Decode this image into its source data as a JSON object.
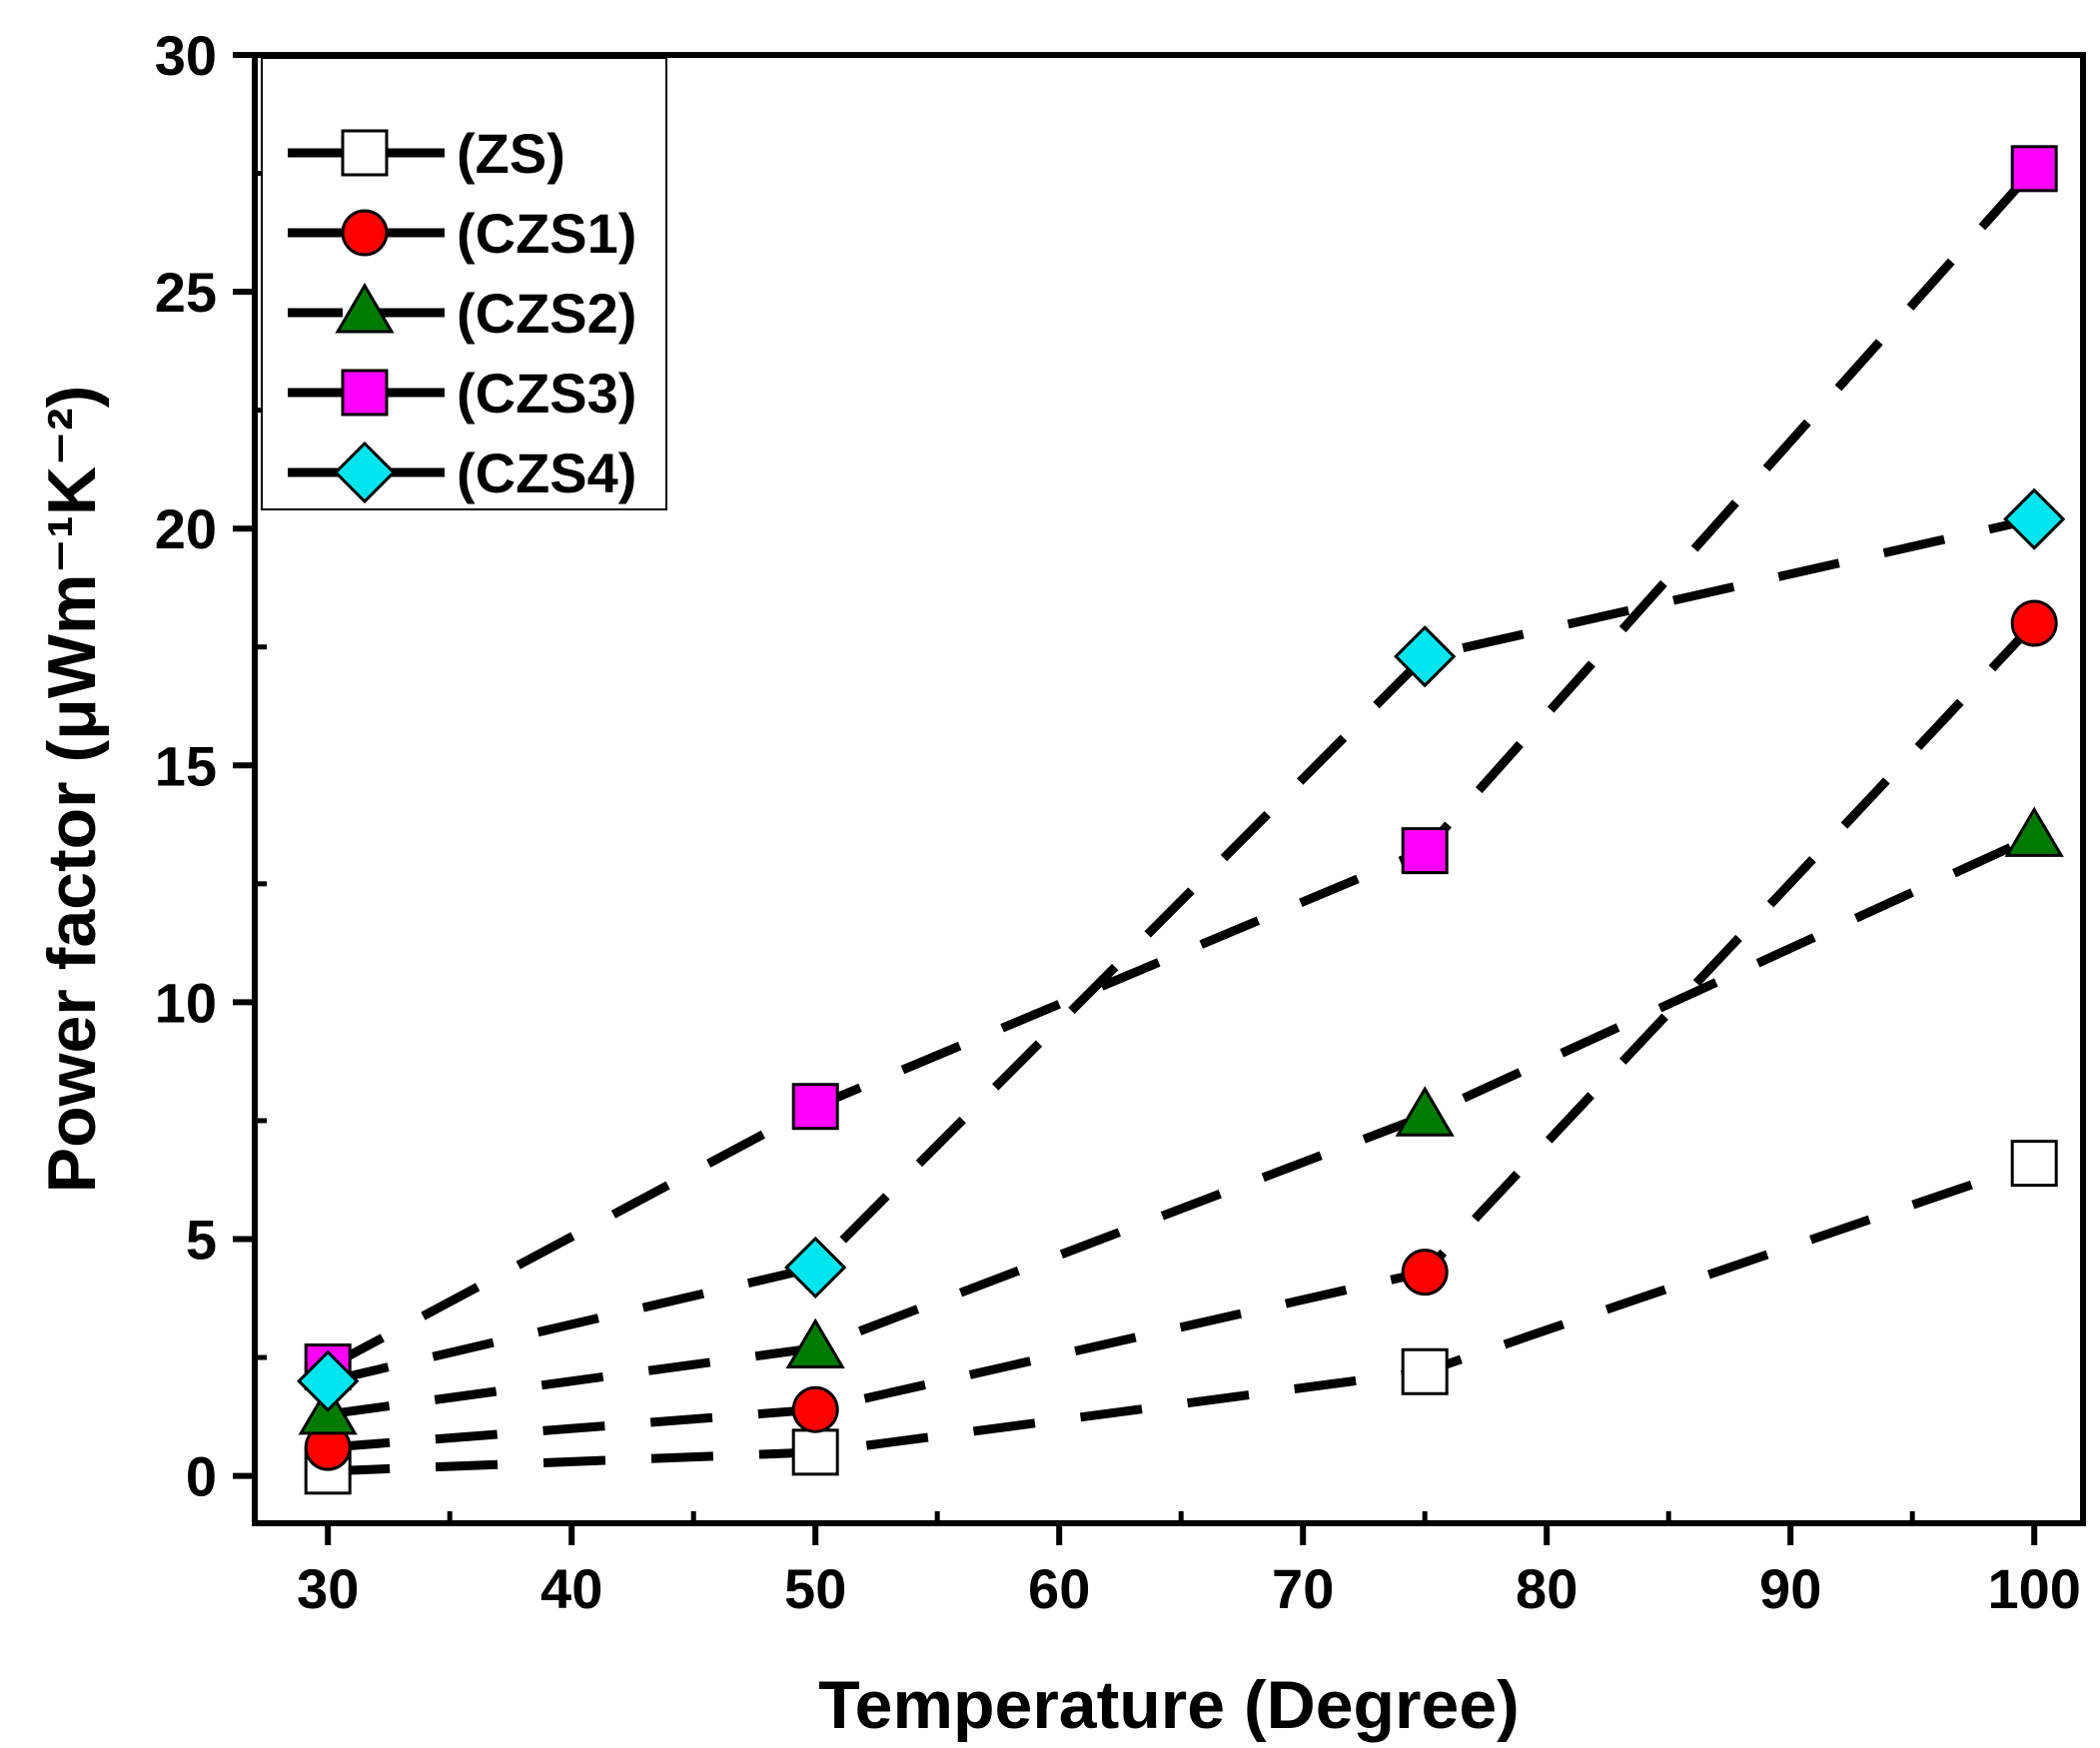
{
  "chart_data": {
    "type": "line",
    "title": "",
    "xlabel": "Temperature (Degree)",
    "ylabel": "Power factor (μWm⁻¹K⁻²)",
    "xlim": [
      27,
      102
    ],
    "ylim": [
      -1,
      30
    ],
    "xticks": [
      30,
      40,
      50,
      60,
      70,
      80,
      90,
      100
    ],
    "yticks": [
      0,
      5,
      10,
      15,
      20,
      25,
      30
    ],
    "x": [
      30,
      50,
      75,
      100
    ],
    "grid": false,
    "legend_position": "top-left",
    "line_style": "dashed",
    "series": [
      {
        "name": "(ZS)",
        "values": [
          0.1,
          0.5,
          2.2,
          6.6
        ],
        "marker": "square",
        "fill": "#ffffff"
      },
      {
        "name": "(CZS1)",
        "values": [
          0.6,
          1.4,
          4.3,
          18.0
        ],
        "marker": "circle",
        "fill": "#ff0000"
      },
      {
        "name": "(CZS2)",
        "values": [
          1.3,
          2.7,
          7.6,
          13.5
        ],
        "marker": "triangle",
        "fill": "#007a00"
      },
      {
        "name": "(CZS3)",
        "values": [
          2.3,
          7.8,
          13.2,
          27.6
        ],
        "marker": "square",
        "fill": "#ff00ff"
      },
      {
        "name": "(CZS4)",
        "values": [
          2.0,
          4.4,
          17.3,
          20.2
        ],
        "marker": "diamond",
        "fill": "#00e5ee"
      }
    ]
  }
}
